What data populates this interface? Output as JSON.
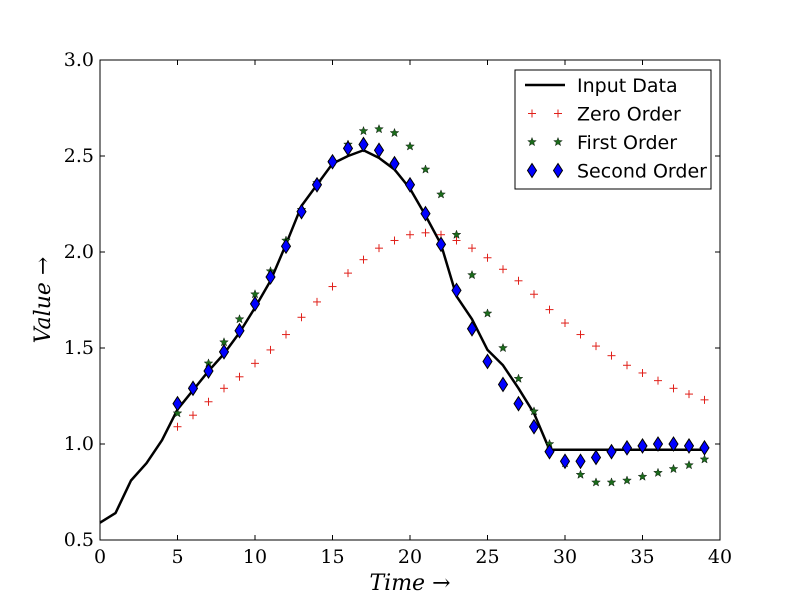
{
  "chart_data": {
    "type": "line",
    "title": "",
    "xlabel": "Time →",
    "ylabel": "Value →",
    "xlim": [
      0,
      40
    ],
    "ylim": [
      0.5,
      3.0
    ],
    "xticks": [
      0,
      5,
      10,
      15,
      20,
      25,
      30,
      35,
      40
    ],
    "yticks": [
      0.5,
      1.0,
      1.5,
      2.0,
      2.5,
      3.0
    ],
    "xtick_labels": [
      "0",
      "5",
      "10",
      "15",
      "20",
      "25",
      "30",
      "35",
      "40"
    ],
    "ytick_labels": [
      "0.5",
      "1.0",
      "1.5",
      "2.0",
      "2.5",
      "3.0"
    ],
    "grid": false,
    "legend_position": "top-right",
    "series": [
      {
        "name": "Input Data",
        "style": "line",
        "color": "#000000",
        "x": [
          0,
          1,
          2,
          3,
          4,
          5,
          6,
          7,
          8,
          9,
          10,
          11,
          12,
          13,
          14,
          15,
          16,
          17,
          18,
          19,
          20,
          21,
          22,
          23,
          24,
          25,
          26,
          27,
          28,
          29,
          30,
          31,
          32,
          33,
          34,
          35,
          36,
          37,
          38,
          39
        ],
        "y": [
          0.59,
          0.64,
          0.81,
          0.9,
          1.02,
          1.18,
          1.28,
          1.38,
          1.47,
          1.58,
          1.71,
          1.85,
          2.04,
          2.24,
          2.35,
          2.46,
          2.5,
          2.53,
          2.49,
          2.43,
          2.33,
          2.19,
          2.04,
          1.77,
          1.65,
          1.49,
          1.41,
          1.29,
          1.16,
          0.97,
          0.97,
          0.97,
          0.97,
          0.97,
          0.97,
          0.97,
          0.97,
          0.97,
          0.97,
          0.97
        ]
      },
      {
        "name": "Zero Order",
        "style": "plus",
        "color": "#e0201a",
        "x": [
          5,
          6,
          7,
          8,
          9,
          10,
          11,
          12,
          13,
          14,
          15,
          16,
          17,
          18,
          19,
          20,
          21,
          22,
          23,
          24,
          25,
          26,
          27,
          28,
          29,
          30,
          31,
          32,
          33,
          34,
          35,
          36,
          37,
          38,
          39
        ],
        "y": [
          1.09,
          1.15,
          1.22,
          1.29,
          1.35,
          1.42,
          1.49,
          1.57,
          1.66,
          1.74,
          1.82,
          1.89,
          1.96,
          2.02,
          2.06,
          2.09,
          2.1,
          2.09,
          2.06,
          2.02,
          1.97,
          1.91,
          1.85,
          1.78,
          1.7,
          1.63,
          1.57,
          1.51,
          1.46,
          1.41,
          1.37,
          1.33,
          1.29,
          1.26,
          1.23
        ]
      },
      {
        "name": "First Order",
        "style": "star",
        "color": "#1b6b1b",
        "x": [
          5,
          6,
          7,
          8,
          9,
          10,
          11,
          12,
          13,
          14,
          15,
          16,
          17,
          18,
          19,
          20,
          21,
          22,
          23,
          24,
          25,
          26,
          27,
          28,
          29,
          30,
          31,
          32,
          33,
          34,
          35,
          36,
          37,
          38,
          39
        ],
        "y": [
          1.16,
          1.29,
          1.42,
          1.53,
          1.65,
          1.78,
          1.9,
          2.06,
          2.22,
          2.36,
          2.47,
          2.56,
          2.63,
          2.64,
          2.62,
          2.55,
          2.43,
          2.3,
          2.09,
          1.88,
          1.68,
          1.5,
          1.34,
          1.17,
          1.0,
          0.9,
          0.84,
          0.8,
          0.8,
          0.81,
          0.83,
          0.85,
          0.87,
          0.89,
          0.92
        ]
      },
      {
        "name": "Second Order",
        "style": "diamond",
        "color": "#0000ff",
        "x": [
          5,
          6,
          7,
          8,
          9,
          10,
          11,
          12,
          13,
          14,
          15,
          16,
          17,
          18,
          19,
          20,
          21,
          22,
          23,
          24,
          25,
          26,
          27,
          28,
          29,
          30,
          31,
          32,
          33,
          34,
          35,
          36,
          37,
          38,
          39
        ],
        "y": [
          1.21,
          1.29,
          1.38,
          1.48,
          1.59,
          1.73,
          1.87,
          2.03,
          2.21,
          2.35,
          2.47,
          2.54,
          2.56,
          2.53,
          2.46,
          2.35,
          2.2,
          2.04,
          1.8,
          1.6,
          1.43,
          1.31,
          1.21,
          1.09,
          0.96,
          0.91,
          0.91,
          0.93,
          0.96,
          0.98,
          0.99,
          1.0,
          1.0,
          0.99,
          0.98
        ]
      }
    ]
  }
}
